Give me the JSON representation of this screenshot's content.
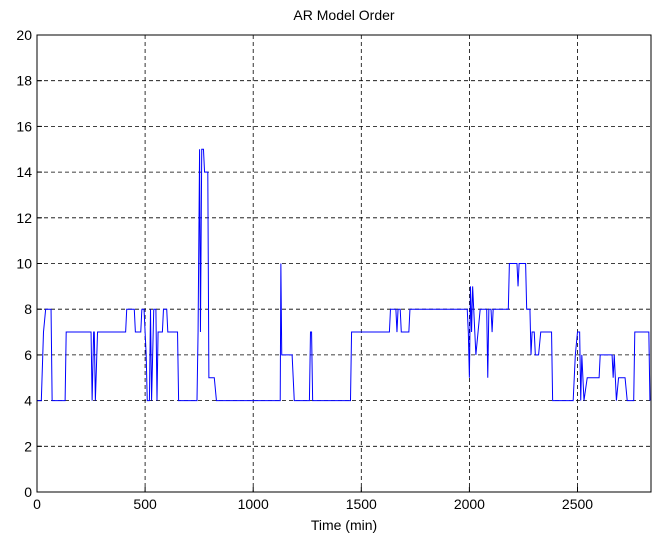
{
  "chart_data": {
    "type": "line",
    "title": "AR Model Order",
    "x_label": "Time (min)",
    "x": [
      0,
      20,
      30,
      40,
      65,
      70,
      130,
      135,
      250,
      255,
      262,
      265,
      270,
      280,
      410,
      415,
      450,
      455,
      480,
      485,
      495,
      500,
      505,
      510,
      520,
      525,
      530,
      540,
      550,
      555,
      560,
      580,
      585,
      600,
      605,
      650,
      655,
      740,
      745,
      752,
      756,
      762,
      770,
      775,
      790,
      795,
      820,
      830,
      1125,
      1128,
      1132,
      1180,
      1185,
      1190,
      1260,
      1265,
      1270,
      1275,
      1450,
      1455,
      1630,
      1635,
      1660,
      1665,
      1670,
      1680,
      1685,
      1720,
      1725,
      1990,
      1995,
      2000,
      2005,
      2010,
      2015,
      2020,
      2030,
      2040,
      2050,
      2080,
      2085,
      2090,
      2100,
      2105,
      2110,
      2180,
      2185,
      2220,
      2225,
      2230,
      2260,
      2265,
      2280,
      2285,
      2290,
      2300,
      2305,
      2320,
      2330,
      2380,
      2385,
      2480,
      2490,
      2500,
      2510,
      2515,
      2520,
      2530,
      2545,
      2600,
      2605,
      2660,
      2665,
      2670,
      2680,
      2690,
      2720,
      2730,
      2760,
      2765,
      2830,
      2835
    ],
    "series": [
      {
        "color": "#0000ff",
        "values": [
          4,
          4,
          7,
          8,
          8,
          4,
          4,
          7,
          7,
          4,
          7,
          7,
          4,
          7,
          7,
          8,
          8,
          7,
          7,
          8,
          8,
          7,
          6,
          4,
          4,
          8,
          4,
          8,
          8,
          4,
          7,
          7,
          8,
          8,
          7,
          7,
          4,
          4,
          7,
          15,
          7,
          15,
          15,
          14,
          14,
          5,
          5,
          4,
          4,
          10,
          6,
          6,
          5,
          4,
          4,
          7,
          7,
          4,
          4,
          7,
          7,
          8,
          8,
          7,
          8,
          8,
          7,
          7,
          8,
          8,
          7,
          5,
          9,
          7,
          9,
          8,
          6,
          7,
          8,
          8,
          5,
          8,
          8,
          7,
          8,
          8,
          10,
          10,
          9,
          10,
          10,
          8,
          8,
          6,
          7,
          7,
          6,
          6,
          7,
          7,
          4,
          4,
          6,
          7,
          7,
          4,
          6,
          4,
          5,
          5,
          6,
          6,
          5,
          6,
          4,
          5,
          5,
          4,
          4,
          7,
          7,
          4
        ]
      }
    ],
    "xlim": [
      0,
      2840
    ],
    "ylim": [
      0,
      20
    ],
    "xticks": [
      0,
      500,
      1000,
      1500,
      2000,
      2500
    ],
    "yticks": [
      0,
      2,
      4,
      6,
      8,
      10,
      12,
      14,
      16,
      18,
      20
    ],
    "grid": true
  }
}
